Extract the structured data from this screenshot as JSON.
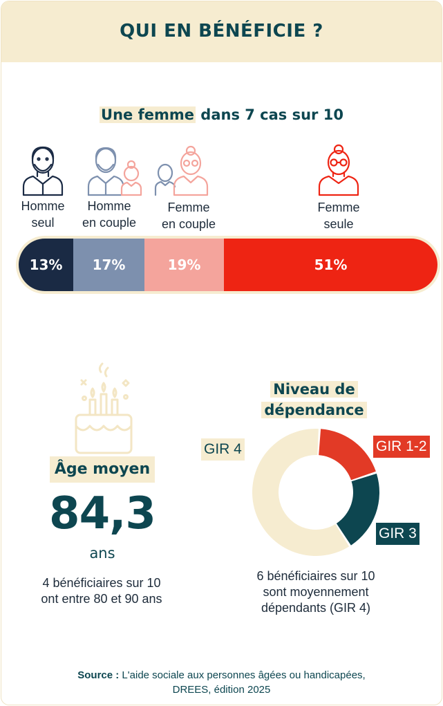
{
  "header": {
    "title": "QUI EN BÉNÉFICIE ?"
  },
  "household": {
    "subtitle_highlight": "Une femme",
    "subtitle_rest": " dans 7 cas sur 10",
    "personas": [
      {
        "line1": "Homme",
        "line2": "seul"
      },
      {
        "line1": "Homme",
        "line2": "en couple"
      },
      {
        "line1": "Femme",
        "line2": "en couple"
      },
      {
        "line1": "Femme",
        "line2": "seule"
      }
    ]
  },
  "age": {
    "title": "Âge moyen",
    "value": "84,3",
    "unit": "ans",
    "note_line1": "4 bénéficiaires sur 10",
    "note_line2": "ont entre 80 et 90 ans"
  },
  "dependency": {
    "title_line1": "Niveau de",
    "title_line2": "dépendance",
    "note_line1": "6 bénéficiaires sur 10",
    "note_line2": "sont moyennement",
    "note_line3": "dépendants (GIR 4)"
  },
  "source": {
    "label": "Source :",
    "line1": " L'aide sociale aux personnes âgées ou handicapées,",
    "line2": "DREES, édition 2025"
  },
  "chart_data": [
    {
      "type": "bar",
      "stacked": true,
      "orientation": "horizontal",
      "categories": [
        "Homme seul",
        "Homme en couple",
        "Femme en couple",
        "Femme seule"
      ],
      "values": [
        13,
        17,
        19,
        51
      ],
      "labels": [
        "13%",
        "17%",
        "19%",
        "51%"
      ],
      "colors": [
        "#1a2a44",
        "#7d90ae",
        "#f4a49c",
        "#ee2413"
      ]
    },
    {
      "type": "pie",
      "donut": true,
      "categories": [
        "GIR 1-2",
        "GIR 3",
        "GIR 4"
      ],
      "values": [
        19,
        21,
        60
      ],
      "colors": [
        "#e23a26",
        "#0d4650",
        "#f6ecd0"
      ],
      "label_colors": {
        "GIR 1-2": "#ffffff",
        "GIR 3": "#ffffff",
        "GIR 4": "#0d4650"
      }
    }
  ]
}
